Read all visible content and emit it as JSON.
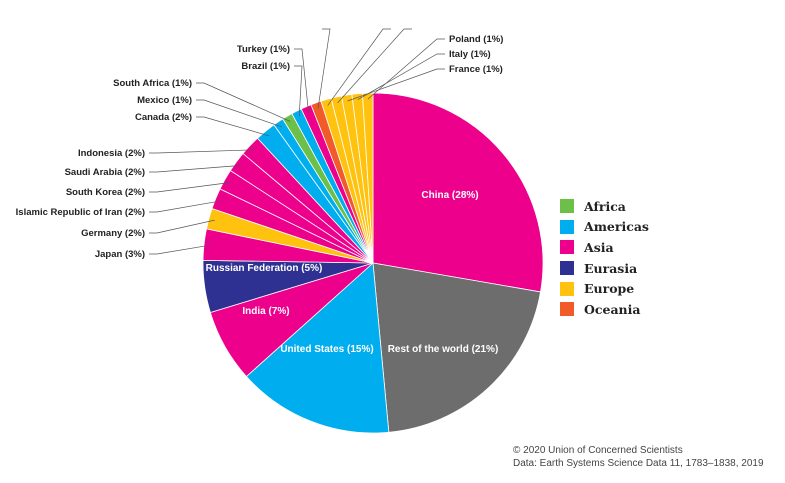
{
  "chart_data": {
    "type": "pie",
    "slices": [
      {
        "label": "China (28%)",
        "value": 28,
        "region": "Asia"
      },
      {
        "label": "Rest of the world (21%)",
        "value": 21,
        "region": "Other"
      },
      {
        "label": "United States (15%)",
        "value": 15,
        "region": "Americas"
      },
      {
        "label": "India (7%)",
        "value": 7,
        "region": "Asia"
      },
      {
        "label": "Russian Federation (5%)",
        "value": 5,
        "region": "Eurasia"
      },
      {
        "label": "Japan (3%)",
        "value": 3,
        "region": "Asia"
      },
      {
        "label": "Germany (2%)",
        "value": 2,
        "region": "Europe"
      },
      {
        "label": "Islamic Republic of Iran (2%)",
        "value": 2,
        "region": "Asia"
      },
      {
        "label": "South Korea (2%)",
        "value": 2,
        "region": "Asia"
      },
      {
        "label": "Saudi Arabia (2%)",
        "value": 2,
        "region": "Asia"
      },
      {
        "label": "Indonesia (2%)",
        "value": 2,
        "region": "Asia"
      },
      {
        "label": "Canada (2%)",
        "value": 2,
        "region": "Americas"
      },
      {
        "label": "Mexico (1%)",
        "value": 1,
        "region": "Americas"
      },
      {
        "label": "South Africa (1%)",
        "value": 1,
        "region": "Africa"
      },
      {
        "label": "Brazil (1%)",
        "value": 1,
        "region": "Americas"
      },
      {
        "label": "Turkey (1%)",
        "value": 1,
        "region": "Asia"
      },
      {
        "label": "",
        "value": 1,
        "region": "Oceania"
      },
      {
        "label": "",
        "value": 1,
        "region": "Europe"
      },
      {
        "label": "",
        "value": 1,
        "region": "Europe"
      },
      {
        "label": "France (1%)",
        "value": 1,
        "region": "Europe"
      },
      {
        "label": "Italy (1%)",
        "value": 1,
        "region": "Europe"
      },
      {
        "label": "Poland (1%)",
        "value": 1,
        "region": "Europe"
      }
    ],
    "legend": [
      {
        "name": "Africa",
        "color": "#6cc04a"
      },
      {
        "name": "Americas",
        "color": "#00aeef"
      },
      {
        "name": "Asia",
        "color": "#ec008c"
      },
      {
        "name": "Eurasia",
        "color": "#2e3192"
      },
      {
        "name": "Europe",
        "color": "#ffc20e"
      },
      {
        "name": "Oceania",
        "color": "#f15a29"
      }
    ],
    "other_color": "#6d6d6d",
    "legend_position": "right"
  },
  "credits": {
    "copyright": "© 2020 Union of Concerned Scientists",
    "source": "Data: Earth Systems Science Data 11, 1783–1838, 2019"
  }
}
